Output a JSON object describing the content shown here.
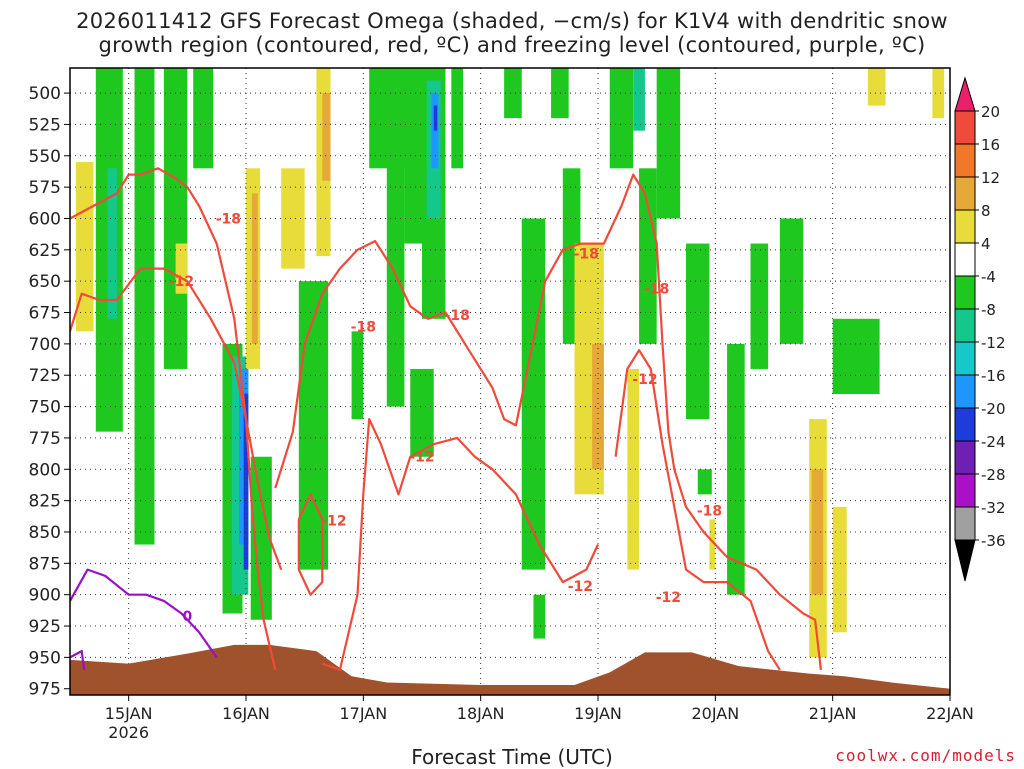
{
  "title_line1": "2026011412 GFS Forecast Omega (shaded, −cm/s) for K1V4 with dendritic snow",
  "title_line2": "growth region (contoured, red, ºC) and freezing level (contoured, purple, ºC)",
  "xlabel": "Forecast Time (UTC)",
  "credit": "coolwx.com/models",
  "chart_data": {
    "type": "heatmap",
    "x_unit": "day of January 2026 (UTC)",
    "x_range": [
      14.5,
      22.0
    ],
    "x_ticks": [
      {
        "value": 15,
        "label": "15JAN",
        "sub": "2026"
      },
      {
        "value": 16,
        "label": "16JAN"
      },
      {
        "value": 17,
        "label": "17JAN"
      },
      {
        "value": 18,
        "label": "18JAN"
      },
      {
        "value": 19,
        "label": "19JAN"
      },
      {
        "value": 20,
        "label": "20JAN"
      },
      {
        "value": 21,
        "label": "21JAN"
      },
      {
        "value": 22,
        "label": "22JAN"
      }
    ],
    "y_ticks": [
      500,
      525,
      550,
      575,
      600,
      625,
      650,
      675,
      700,
      725,
      750,
      775,
      800,
      825,
      850,
      875,
      900,
      925,
      950,
      975
    ],
    "y_range": [
      480,
      980
    ],
    "grid": "dotted",
    "legend_placement": "right",
    "colorbar": {
      "labels": [
        "20",
        "16",
        "12",
        "8",
        "4",
        "-4",
        "-8",
        "-12",
        "-16",
        "-20",
        "-24",
        "-28",
        "-32",
        "-36"
      ],
      "colors": [
        "#ee1f6a",
        "#f04a3a",
        "#f07828",
        "#e6a837",
        "#e8dc3a",
        "#ffffff",
        "#1ec81e",
        "#14c88c",
        "#16c8c8",
        "#1e96ff",
        "#1e3cdc",
        "#6e20b4",
        "#aa10c8",
        "#a0a0a0",
        "#000000"
      ]
    },
    "terrain_color": "#a0522d",
    "terrain": [
      [
        14.5,
        952
      ],
      [
        15.0,
        955
      ],
      [
        15.5,
        947
      ],
      [
        15.9,
        940
      ],
      [
        16.2,
        940
      ],
      [
        16.6,
        945
      ],
      [
        16.9,
        965
      ],
      [
        17.2,
        970
      ],
      [
        18.0,
        972
      ],
      [
        18.8,
        972
      ],
      [
        19.1,
        962
      ],
      [
        19.4,
        946
      ],
      [
        19.8,
        946
      ],
      [
        20.2,
        957
      ],
      [
        20.8,
        963
      ],
      [
        21.1,
        965
      ],
      [
        21.5,
        970
      ],
      [
        22.0,
        975
      ]
    ],
    "omega_bands": [
      {
        "x": [
          14.55,
          14.7
        ],
        "p": [
          555,
          690
        ],
        "color": "#e8dc3a"
      },
      {
        "x": [
          14.72,
          14.95
        ],
        "p": [
          480,
          770
        ],
        "color": "#1ec81e"
      },
      {
        "x": [
          14.82,
          14.9
        ],
        "p": [
          560,
          680
        ],
        "color": "#14c88c"
      },
      {
        "x": [
          15.05,
          15.22
        ],
        "p": [
          480,
          860
        ],
        "color": "#1ec81e"
      },
      {
        "x": [
          15.3,
          15.5
        ],
        "p": [
          480,
          720
        ],
        "color": "#1ec81e"
      },
      {
        "x": [
          15.4,
          15.5
        ],
        "p": [
          620,
          660
        ],
        "color": "#e8dc3a"
      },
      {
        "x": [
          15.55,
          15.72
        ],
        "p": [
          480,
          560
        ],
        "color": "#1ec81e"
      },
      {
        "x": [
          15.8,
          15.97
        ],
        "p": [
          700,
          915
        ],
        "color": "#1ec81e"
      },
      {
        "x": [
          15.88,
          16.02
        ],
        "p": [
          710,
          900
        ],
        "color": "#14c88c"
      },
      {
        "x": [
          15.94,
          16.02
        ],
        "p": [
          720,
          860
        ],
        "color": "#1e96ff"
      },
      {
        "x": [
          15.98,
          16.02
        ],
        "p": [
          740,
          880
        ],
        "color": "#1e3cdc"
      },
      {
        "x": [
          16.04,
          16.22
        ],
        "p": [
          790,
          920
        ],
        "color": "#1ec81e"
      },
      {
        "x": [
          16.0,
          16.12
        ],
        "p": [
          560,
          720
        ],
        "color": "#e8dc3a"
      },
      {
        "x": [
          16.05,
          16.1
        ],
        "p": [
          580,
          700
        ],
        "color": "#e6a837"
      },
      {
        "x": [
          16.3,
          16.5
        ],
        "p": [
          560,
          640
        ],
        "color": "#e8dc3a"
      },
      {
        "x": [
          16.45,
          16.7
        ],
        "p": [
          650,
          880
        ],
        "color": "#1ec81e"
      },
      {
        "x": [
          16.6,
          16.72
        ],
        "p": [
          480,
          630
        ],
        "color": "#e8dc3a"
      },
      {
        "x": [
          16.65,
          16.72
        ],
        "p": [
          500,
          570
        ],
        "color": "#e6a837"
      },
      {
        "x": [
          16.9,
          17.0
        ],
        "p": [
          690,
          760
        ],
        "color": "#1ec81e"
      },
      {
        "x": [
          17.05,
          17.35
        ],
        "p": [
          480,
          560
        ],
        "color": "#1ec81e"
      },
      {
        "x": [
          17.2,
          17.35
        ],
        "p": [
          480,
          750
        ],
        "color": "#1ec81e"
      },
      {
        "x": [
          17.35,
          17.5
        ],
        "p": [
          480,
          620
        ],
        "color": "#1ec81e"
      },
      {
        "x": [
          17.5,
          17.7
        ],
        "p": [
          480,
          680
        ],
        "color": "#1ec81e"
      },
      {
        "x": [
          17.54,
          17.66
        ],
        "p": [
          490,
          600
        ],
        "color": "#14c88c"
      },
      {
        "x": [
          17.58,
          17.64
        ],
        "p": [
          500,
          560
        ],
        "color": "#1e96ff"
      },
      {
        "x": [
          17.6,
          17.63
        ],
        "p": [
          510,
          530
        ],
        "color": "#1e3cdc"
      },
      {
        "x": [
          17.4,
          17.6
        ],
        "p": [
          720,
          790
        ],
        "color": "#1ec81e"
      },
      {
        "x": [
          17.75,
          17.85
        ],
        "p": [
          480,
          560
        ],
        "color": "#1ec81e"
      },
      {
        "x": [
          18.2,
          18.35
        ],
        "p": [
          480,
          520
        ],
        "color": "#1ec81e"
      },
      {
        "x": [
          18.35,
          18.55
        ],
        "p": [
          600,
          880
        ],
        "color": "#1ec81e"
      },
      {
        "x": [
          18.45,
          18.55
        ],
        "p": [
          900,
          935
        ],
        "color": "#1ec81e"
      },
      {
        "x": [
          18.6,
          18.75
        ],
        "p": [
          480,
          520
        ],
        "color": "#1ec81e"
      },
      {
        "x": [
          18.7,
          18.85
        ],
        "p": [
          560,
          700
        ],
        "color": "#1ec81e"
      },
      {
        "x": [
          18.8,
          19.05
        ],
        "p": [
          620,
          820
        ],
        "color": "#e8dc3a"
      },
      {
        "x": [
          18.95,
          19.05
        ],
        "p": [
          700,
          800
        ],
        "color": "#e6a837"
      },
      {
        "x": [
          19.1,
          19.3
        ],
        "p": [
          480,
          560
        ],
        "color": "#1ec81e"
      },
      {
        "x": [
          19.3,
          19.4
        ],
        "p": [
          480,
          530
        ],
        "color": "#14c88c"
      },
      {
        "x": [
          19.35,
          19.5
        ],
        "p": [
          560,
          700
        ],
        "color": "#1ec81e"
      },
      {
        "x": [
          19.25,
          19.35
        ],
        "p": [
          720,
          880
        ],
        "color": "#e8dc3a"
      },
      {
        "x": [
          19.5,
          19.7
        ],
        "p": [
          480,
          600
        ],
        "color": "#1ec81e"
      },
      {
        "x": [
          19.75,
          19.95
        ],
        "p": [
          620,
          760
        ],
        "color": "#1ec81e"
      },
      {
        "x": [
          19.85,
          19.97
        ],
        "p": [
          800,
          820
        ],
        "color": "#1ec81e"
      },
      {
        "x": [
          19.95,
          20.0
        ],
        "p": [
          840,
          880
        ],
        "color": "#e8dc3a"
      },
      {
        "x": [
          20.1,
          20.25
        ],
        "p": [
          700,
          900
        ],
        "color": "#1ec81e"
      },
      {
        "x": [
          20.3,
          20.45
        ],
        "p": [
          620,
          720
        ],
        "color": "#1ec81e"
      },
      {
        "x": [
          20.55,
          20.75
        ],
        "p": [
          600,
          700
        ],
        "color": "#1ec81e"
      },
      {
        "x": [
          20.8,
          20.95
        ],
        "p": [
          760,
          950
        ],
        "color": "#e8dc3a"
      },
      {
        "x": [
          20.82,
          20.92
        ],
        "p": [
          800,
          900
        ],
        "color": "#e6a837"
      },
      {
        "x": [
          21.0,
          21.12
        ],
        "p": [
          830,
          930
        ],
        "color": "#e8dc3a"
      },
      {
        "x": [
          21.0,
          21.4
        ],
        "p": [
          680,
          740
        ],
        "color": "#1ec81e"
      },
      {
        "x": [
          21.3,
          21.45
        ],
        "p": [
          480,
          510
        ],
        "color": "#e8dc3a"
      },
      {
        "x": [
          21.85,
          21.95
        ],
        "p": [
          480,
          520
        ],
        "color": "#e8dc3a"
      }
    ],
    "contours": {
      "dgz_color": "#f04a3a",
      "freezing_color": "#9a10c8",
      "neg18": [
        [
          14.5,
          600
        ],
        [
          14.7,
          590
        ],
        [
          14.9,
          580
        ],
        [
          15.0,
          565
        ],
        [
          15.1,
          565
        ],
        [
          15.25,
          560
        ],
        [
          15.4,
          568
        ],
        [
          15.5,
          575
        ],
        [
          15.6,
          590
        ],
        [
          15.75,
          620
        ],
        [
          15.9,
          680
        ],
        [
          16.0,
          760
        ],
        [
          16.05,
          830
        ],
        [
          16.1,
          880
        ],
        [
          16.15,
          920
        ],
        [
          16.25,
          960
        ]
      ],
      "neg18_b": [
        [
          16.25,
          815
        ],
        [
          16.4,
          770
        ],
        [
          16.5,
          700
        ],
        [
          16.65,
          660
        ],
        [
          16.8,
          640
        ],
        [
          16.95,
          625
        ],
        [
          17.1,
          618
        ],
        [
          17.25,
          640
        ],
        [
          17.4,
          670
        ],
        [
          17.55,
          680
        ],
        [
          17.7,
          675
        ],
        [
          17.9,
          705
        ],
        [
          18.1,
          735
        ],
        [
          18.2,
          760
        ],
        [
          18.3,
          765
        ],
        [
          18.4,
          720
        ],
        [
          18.55,
          650
        ],
        [
          18.7,
          625
        ],
        [
          18.85,
          620
        ],
        [
          19.05,
          620
        ],
        [
          19.2,
          590
        ],
        [
          19.3,
          565
        ],
        [
          19.4,
          580
        ],
        [
          19.5,
          620
        ],
        [
          19.55,
          700
        ],
        [
          19.6,
          770
        ],
        [
          19.65,
          800
        ],
        [
          19.75,
          830
        ],
        [
          19.9,
          850
        ],
        [
          20.1,
          870
        ],
        [
          20.35,
          880
        ],
        [
          20.55,
          900
        ],
        [
          20.75,
          915
        ],
        [
          20.85,
          920
        ],
        [
          20.9,
          960
        ]
      ],
      "neg12": [
        [
          14.5,
          690
        ],
        [
          14.6,
          660
        ],
        [
          14.75,
          665
        ],
        [
          14.9,
          665
        ],
        [
          15.1,
          640
        ],
        [
          15.3,
          640
        ],
        [
          15.5,
          650
        ],
        [
          15.7,
          680
        ],
        [
          15.9,
          715
        ],
        [
          16.0,
          760
        ],
        [
          16.1,
          810
        ],
        [
          16.2,
          855
        ],
        [
          16.3,
          880
        ]
      ],
      "neg12_b": [
        [
          16.65,
          955
        ],
        [
          16.8,
          960
        ],
        [
          16.95,
          900
        ],
        [
          17.0,
          820
        ],
        [
          17.05,
          760
        ],
        [
          17.15,
          780
        ],
        [
          17.3,
          820
        ],
        [
          17.4,
          790
        ],
        [
          17.6,
          780
        ],
        [
          17.8,
          775
        ],
        [
          17.95,
          790
        ],
        [
          18.1,
          800
        ],
        [
          18.3,
          820
        ],
        [
          18.5,
          860
        ],
        [
          18.7,
          890
        ],
        [
          18.9,
          880
        ],
        [
          19.0,
          860
        ]
      ],
      "neg12_c": [
        [
          19.15,
          790
        ],
        [
          19.25,
          720
        ],
        [
          19.35,
          705
        ],
        [
          19.45,
          720
        ],
        [
          19.55,
          780
        ],
        [
          19.65,
          830
        ],
        [
          19.75,
          880
        ],
        [
          19.9,
          890
        ],
        [
          20.1,
          890
        ],
        [
          20.3,
          905
        ],
        [
          20.45,
          945
        ],
        [
          20.55,
          960
        ]
      ],
      "neg12_loop": [
        [
          16.45,
          840
        ],
        [
          16.55,
          820
        ],
        [
          16.65,
          840
        ],
        [
          16.65,
          890
        ],
        [
          16.55,
          900
        ],
        [
          16.45,
          880
        ],
        [
          16.45,
          840
        ]
      ],
      "freezing0": [
        [
          14.5,
          905
        ],
        [
          14.65,
          880
        ],
        [
          14.8,
          885
        ],
        [
          15.0,
          900
        ],
        [
          15.15,
          900
        ],
        [
          15.3,
          905
        ],
        [
          15.45,
          915
        ],
        [
          15.6,
          930
        ],
        [
          15.75,
          950
        ]
      ],
      "freezing0_small": [
        [
          14.5,
          950
        ],
        [
          14.6,
          945
        ],
        [
          14.62,
          960
        ]
      ]
    },
    "contour_labels": [
      {
        "text": "-18",
        "x": 15.85,
        "p": 600
      },
      {
        "text": "-12",
        "x": 15.45,
        "p": 650
      },
      {
        "text": "-18",
        "x": 17.0,
        "p": 686
      },
      {
        "text": "-18",
        "x": 17.8,
        "p": 677
      },
      {
        "text": "-18",
        "x": 18.9,
        "p": 628
      },
      {
        "text": "-18",
        "x": 19.5,
        "p": 656
      },
      {
        "text": "-12",
        "x": 19.4,
        "p": 728
      },
      {
        "text": "-12",
        "x": 17.5,
        "p": 790
      },
      {
        "text": "-12",
        "x": 16.75,
        "p": 841
      },
      {
        "text": "-12",
        "x": 18.85,
        "p": 893
      },
      {
        "text": "-12",
        "x": 19.6,
        "p": 902
      },
      {
        "text": "-18",
        "x": 19.95,
        "p": 833
      },
      {
        "text": "0",
        "x": 15.5,
        "p": 917
      }
    ]
  }
}
